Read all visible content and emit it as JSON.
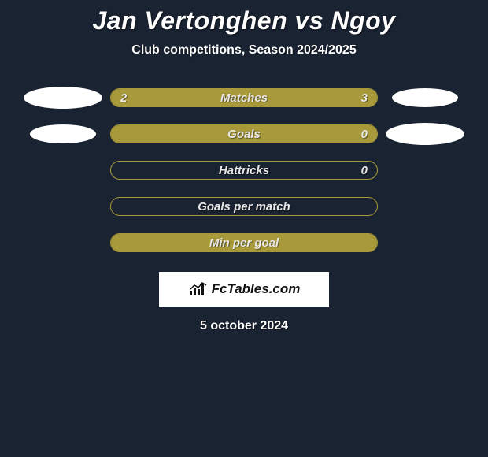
{
  "background_color": "#1a2332",
  "bar_fill_color": "#a89a3a",
  "bar_border_color": "#a89a3a",
  "text_color": "#ffffff",
  "title": "Jan Vertonghen vs Ngoy",
  "subtitle": "Club competitions, Season 2024/2025",
  "date": "5 october 2024",
  "brand": "FcTables.com",
  "ellipse_color": "#ffffff",
  "rows": [
    {
      "label": "Matches",
      "left_value": "2",
      "right_value": "3",
      "left_pct": 40,
      "right_pct": 60,
      "show_left_ellipse": true,
      "show_right_ellipse": true,
      "ellipse_left_rx": 50,
      "ellipse_left_ry": 14,
      "ellipse_right_rx": 42,
      "ellipse_right_ry": 12
    },
    {
      "label": "Goals",
      "left_value": "",
      "right_value": "0",
      "left_pct": 100,
      "right_pct": 0,
      "show_left_ellipse": true,
      "show_right_ellipse": true,
      "ellipse_left_rx": 42,
      "ellipse_left_ry": 12,
      "ellipse_right_rx": 50,
      "ellipse_right_ry": 14
    },
    {
      "label": "Hattricks",
      "left_value": "",
      "right_value": "0",
      "left_pct": 0,
      "right_pct": 0,
      "show_left_ellipse": false,
      "show_right_ellipse": false
    },
    {
      "label": "Goals per match",
      "left_value": "",
      "right_value": "",
      "left_pct": 0,
      "right_pct": 0,
      "show_left_ellipse": false,
      "show_right_ellipse": false
    },
    {
      "label": "Min per goal",
      "left_value": "",
      "right_value": "",
      "left_pct": 100,
      "right_pct": 0,
      "show_left_ellipse": false,
      "show_right_ellipse": false
    }
  ]
}
